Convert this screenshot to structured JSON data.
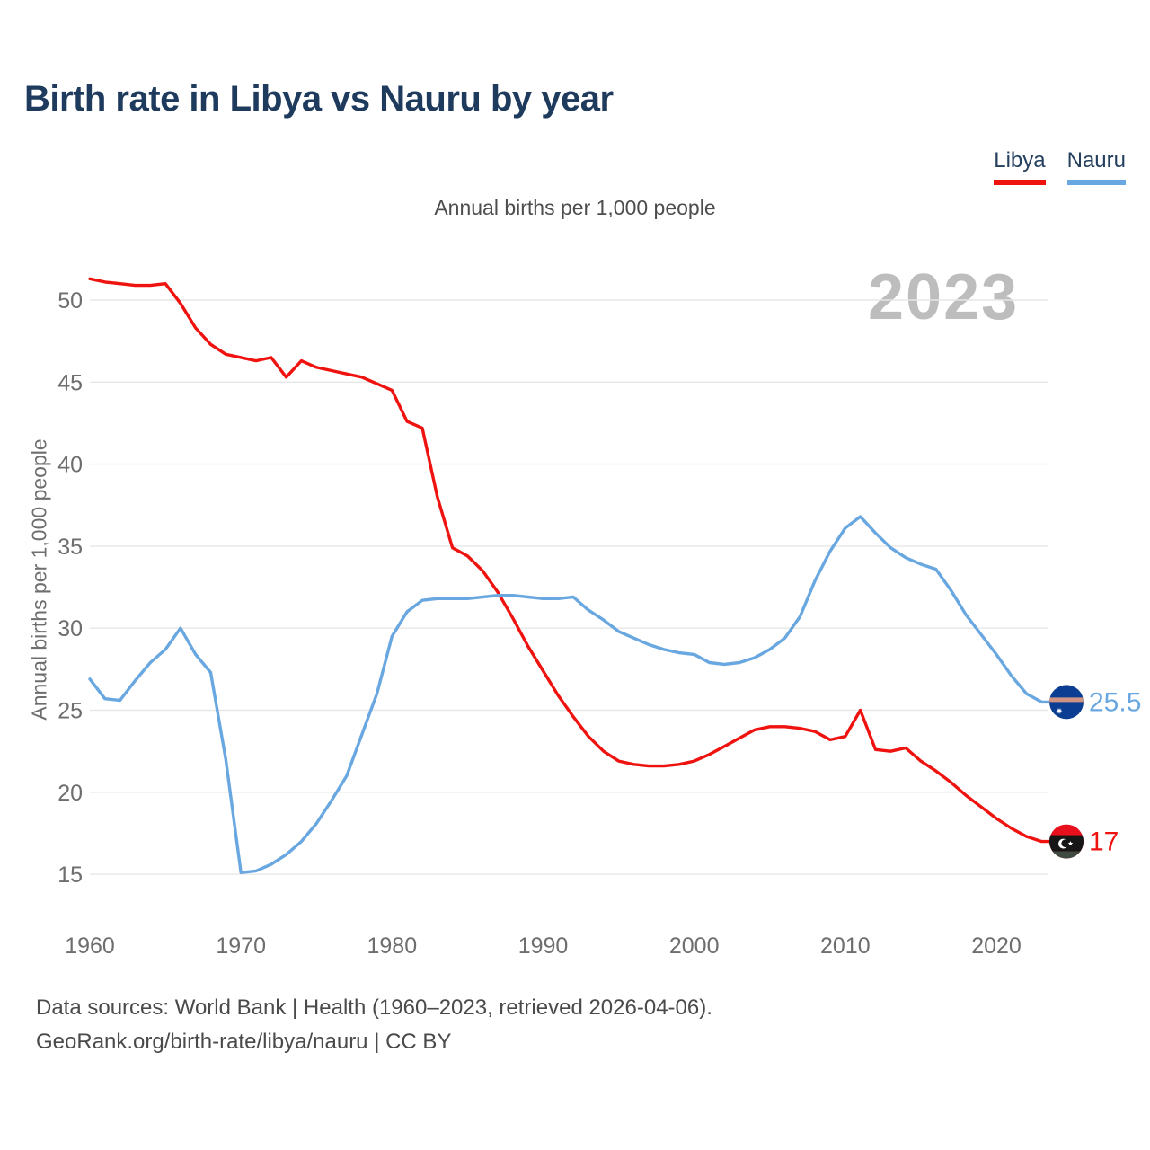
{
  "header": {
    "title": "Birth rate in Libya vs Nauru by year"
  },
  "legend": {
    "items": [
      {
        "id": "libya",
        "label": "Libya",
        "color": "#ef1310"
      },
      {
        "id": "nauru",
        "label": "Nauru",
        "color": "#69a7e0"
      }
    ]
  },
  "chart": {
    "subtitle": "Annual births per 1,000 people",
    "y_axis_title": "Annual births per 1,000 people",
    "watermark": "2023",
    "end_labels": {
      "nauru": "25.5",
      "libya": "17"
    }
  },
  "footer": {
    "line1": "Data sources: World Bank | Health (1960–2023, retrieved 2026-04-06).",
    "line2": "GeoRank.org/birth-rate/libya/nauru | CC BY"
  },
  "colors": {
    "title": "#1e3a5c",
    "legend_text": "#24405e",
    "subtitle_text": "#4d4d4d",
    "tick_text": "#6e6e6e",
    "footer_text": "#4a4a4a",
    "watermark_text": "#bdbdbd",
    "grid": "#e7e7e7",
    "background": "#ffffff"
  },
  "icons": {
    "nauru_flag": {
      "name": "nauru-flag-icon",
      "colors": {
        "bg": "#0b3e92",
        "stripe": "#cf9383",
        "star": "#ffffff"
      }
    },
    "libya_flag": {
      "name": "libya-flag-icon",
      "colors": {
        "top": "#e8101c",
        "band": "#161616",
        "bottom": "#3f4a40",
        "emblem": "#ffffff"
      }
    }
  },
  "chart_data": {
    "type": "line",
    "title": "Birth rate in Libya vs Nauru by year",
    "subtitle": "Annual births per 1,000 people",
    "xlabel": "",
    "ylabel": "Annual births per 1,000 people",
    "xlim": [
      1960,
      2023
    ],
    "ylim": [
      13.5,
      53
    ],
    "x_ticks": [
      1960,
      1970,
      1980,
      1990,
      2000,
      2010,
      2020
    ],
    "y_ticks": [
      15,
      20,
      25,
      30,
      35,
      40,
      45,
      50
    ],
    "grid": "horizontal",
    "legend_position": "top-right",
    "watermark": "2023",
    "x": [
      1960,
      1961,
      1962,
      1963,
      1964,
      1965,
      1966,
      1967,
      1968,
      1969,
      1970,
      1971,
      1972,
      1973,
      1974,
      1975,
      1976,
      1977,
      1978,
      1979,
      1980,
      1981,
      1982,
      1983,
      1984,
      1985,
      1986,
      1987,
      1988,
      1989,
      1990,
      1991,
      1992,
      1993,
      1994,
      1995,
      1996,
      1997,
      1998,
      1999,
      2000,
      2001,
      2002,
      2003,
      2004,
      2005,
      2006,
      2007,
      2008,
      2009,
      2010,
      2011,
      2012,
      2013,
      2014,
      2015,
      2016,
      2017,
      2018,
      2019,
      2020,
      2021,
      2022,
      2023
    ],
    "series": [
      {
        "name": "Libya",
        "color": "#ef1310",
        "end_value": 17,
        "end_label": "17",
        "values": [
          51.3,
          51.1,
          51.0,
          50.9,
          50.9,
          51.0,
          49.8,
          48.3,
          47.3,
          46.7,
          46.5,
          46.3,
          46.5,
          45.3,
          46.3,
          45.9,
          45.7,
          45.5,
          45.3,
          44.9,
          44.5,
          42.6,
          42.2,
          38.0,
          34.9,
          34.4,
          33.5,
          32.2,
          30.6,
          28.9,
          27.4,
          25.9,
          24.6,
          23.4,
          22.5,
          21.9,
          21.7,
          21.6,
          21.6,
          21.7,
          21.9,
          22.3,
          22.8,
          23.3,
          23.8,
          24.0,
          24.0,
          23.9,
          23.7,
          23.2,
          23.4,
          25.0,
          22.6,
          22.5,
          22.7,
          21.9,
          21.3,
          20.6,
          19.8,
          19.1,
          18.4,
          17.8,
          17.3,
          17.0
        ]
      },
      {
        "name": "Nauru",
        "color": "#69a7e0",
        "end_value": 25.5,
        "end_label": "25.5",
        "values": [
          26.9,
          25.7,
          25.6,
          26.8,
          27.9,
          28.7,
          30.0,
          28.4,
          27.3,
          22.0,
          15.1,
          15.2,
          15.6,
          16.2,
          17.0,
          18.1,
          19.5,
          21.0,
          23.5,
          26.0,
          29.5,
          31.0,
          31.7,
          31.8,
          31.8,
          31.8,
          31.9,
          32.0,
          32.0,
          31.9,
          31.8,
          31.8,
          31.9,
          31.1,
          30.5,
          29.8,
          29.4,
          29.0,
          28.7,
          28.5,
          28.4,
          27.9,
          27.8,
          27.9,
          28.2,
          28.7,
          29.4,
          30.7,
          32.9,
          34.7,
          36.1,
          36.8,
          35.8,
          34.9,
          34.3,
          33.9,
          33.6,
          32.3,
          30.8,
          29.6,
          28.4,
          27.1,
          26.0,
          25.5
        ]
      }
    ]
  }
}
